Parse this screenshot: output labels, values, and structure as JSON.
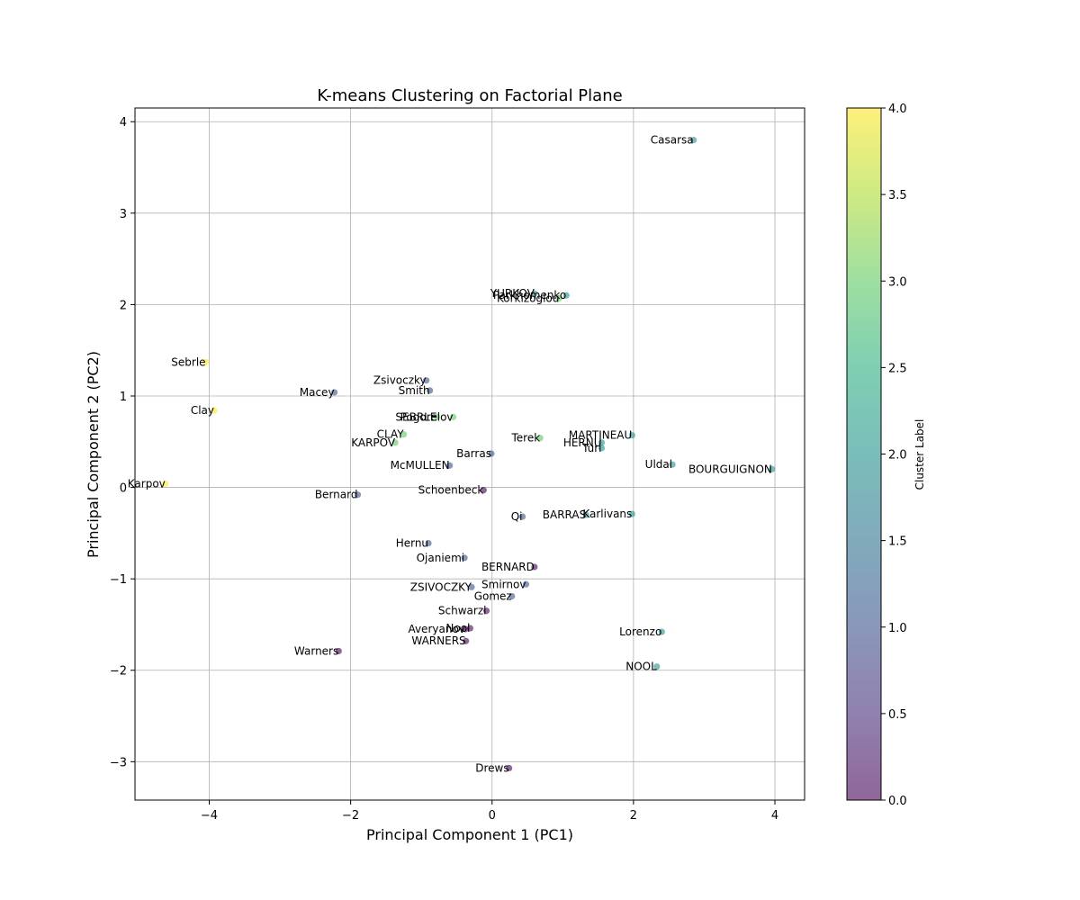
{
  "chart_data": {
    "type": "scatter",
    "title": "K-means Clustering on Factorial Plane",
    "xlabel": "Principal Component 1 (PC1)",
    "ylabel": "Principal Component 2 (PC2)",
    "xlim": [
      -5.05,
      4.42
    ],
    "ylim": [
      -3.42,
      4.15
    ],
    "xticks": [
      -4,
      -2,
      0,
      2,
      4
    ],
    "yticks": [
      -3,
      -2,
      -1,
      0,
      1,
      2,
      3,
      4
    ],
    "grid": true,
    "colormap": "viridis",
    "marker_alpha": 0.6,
    "colorbar": {
      "label": "Cluster Label",
      "min": 0.0,
      "max": 4.0,
      "ticks": [
        "0.0",
        "0.5",
        "1.0",
        "1.5",
        "2.0",
        "2.5",
        "3.0",
        "3.5",
        "4.0"
      ]
    },
    "points": [
      {
        "label": "Casarsa",
        "x": 2.85,
        "y": 3.8,
        "cluster": 2
      },
      {
        "label": "YURKOV",
        "x": 0.6,
        "y": 2.12,
        "cluster": 2
      },
      {
        "label": "Parkhomenko",
        "x": 1.05,
        "y": 2.1,
        "cluster": 2
      },
      {
        "label": "Korkizoglou",
        "x": 0.95,
        "y": 2.07,
        "cluster": 3
      },
      {
        "label": "Sebrle",
        "x": -4.05,
        "y": 1.37,
        "cluster": 4
      },
      {
        "label": "Zsivoczky",
        "x": -0.93,
        "y": 1.17,
        "cluster": 1
      },
      {
        "label": "Smith",
        "x": -0.88,
        "y": 1.06,
        "cluster": 1
      },
      {
        "label": "Macey",
        "x": -2.23,
        "y": 1.04,
        "cluster": 1
      },
      {
        "label": "Clay",
        "x": -3.93,
        "y": 0.84,
        "cluster": 4
      },
      {
        "label": "SEBRLE",
        "x": -0.78,
        "y": 0.77,
        "cluster": 3
      },
      {
        "label": "Pogorelov",
        "x": -0.55,
        "y": 0.77,
        "cluster": 3
      },
      {
        "label": "CLAY",
        "x": -1.25,
        "y": 0.58,
        "cluster": 3
      },
      {
        "label": "Terek",
        "x": 0.68,
        "y": 0.54,
        "cluster": 3
      },
      {
        "label": "MARTINEAU",
        "x": 1.98,
        "y": 0.57,
        "cluster": 2
      },
      {
        "label": "HERNU",
        "x": 1.55,
        "y": 0.49,
        "cluster": 2
      },
      {
        "label": "KARPOV",
        "x": -1.37,
        "y": 0.49,
        "cluster": 3
      },
      {
        "label": "Turi",
        "x": 1.55,
        "y": 0.43,
        "cluster": 2
      },
      {
        "label": "Barras",
        "x": -0.01,
        "y": 0.37,
        "cluster": 1
      },
      {
        "label": "Uldal",
        "x": 2.55,
        "y": 0.25,
        "cluster": 2
      },
      {
        "label": "McMULLEN",
        "x": -0.6,
        "y": 0.24,
        "cluster": 1
      },
      {
        "label": "BOURGUIGNON",
        "x": 3.96,
        "y": 0.2,
        "cluster": 2
      },
      {
        "label": "Karpov",
        "x": -4.62,
        "y": 0.04,
        "cluster": 4
      },
      {
        "label": "Schoenbeck",
        "x": -0.12,
        "y": -0.03,
        "cluster": 0
      },
      {
        "label": "Bernard",
        "x": -1.9,
        "y": -0.08,
        "cluster": 1
      },
      {
        "label": "Karlivans",
        "x": 1.98,
        "y": -0.29,
        "cluster": 2
      },
      {
        "label": "BARRAS",
        "x": 1.33,
        "y": -0.3,
        "cluster": 2
      },
      {
        "label": "Qi",
        "x": 0.43,
        "y": -0.32,
        "cluster": 1
      },
      {
        "label": "Hernu",
        "x": -0.9,
        "y": -0.61,
        "cluster": 1
      },
      {
        "label": "Ojaniemi",
        "x": -0.39,
        "y": -0.77,
        "cluster": 1
      },
      {
        "label": "BERNARD",
        "x": 0.6,
        "y": -0.87,
        "cluster": 0
      },
      {
        "label": "Smirnov",
        "x": 0.48,
        "y": -1.06,
        "cluster": 1
      },
      {
        "label": "ZSIVOCZKY",
        "x": -0.29,
        "y": -1.09,
        "cluster": 1
      },
      {
        "label": "Gomez",
        "x": 0.28,
        "y": -1.19,
        "cluster": 1
      },
      {
        "label": "Schwarzl",
        "x": -0.08,
        "y": -1.35,
        "cluster": 0
      },
      {
        "label": "Nool",
        "x": -0.31,
        "y": -1.54,
        "cluster": 0
      },
      {
        "label": "Averyanov",
        "x": -0.38,
        "y": -1.55,
        "cluster": 0
      },
      {
        "label": "Lorenzo",
        "x": 2.4,
        "y": -1.58,
        "cluster": 2
      },
      {
        "label": "WARNERS",
        "x": -0.37,
        "y": -1.68,
        "cluster": 0
      },
      {
        "label": "Warners",
        "x": -2.17,
        "y": -1.79,
        "cluster": 0
      },
      {
        "label": "NOOL",
        "x": 2.33,
        "y": -1.96,
        "cluster": 2
      },
      {
        "label": "Drews",
        "x": 0.24,
        "y": -3.07,
        "cluster": 0
      }
    ]
  }
}
